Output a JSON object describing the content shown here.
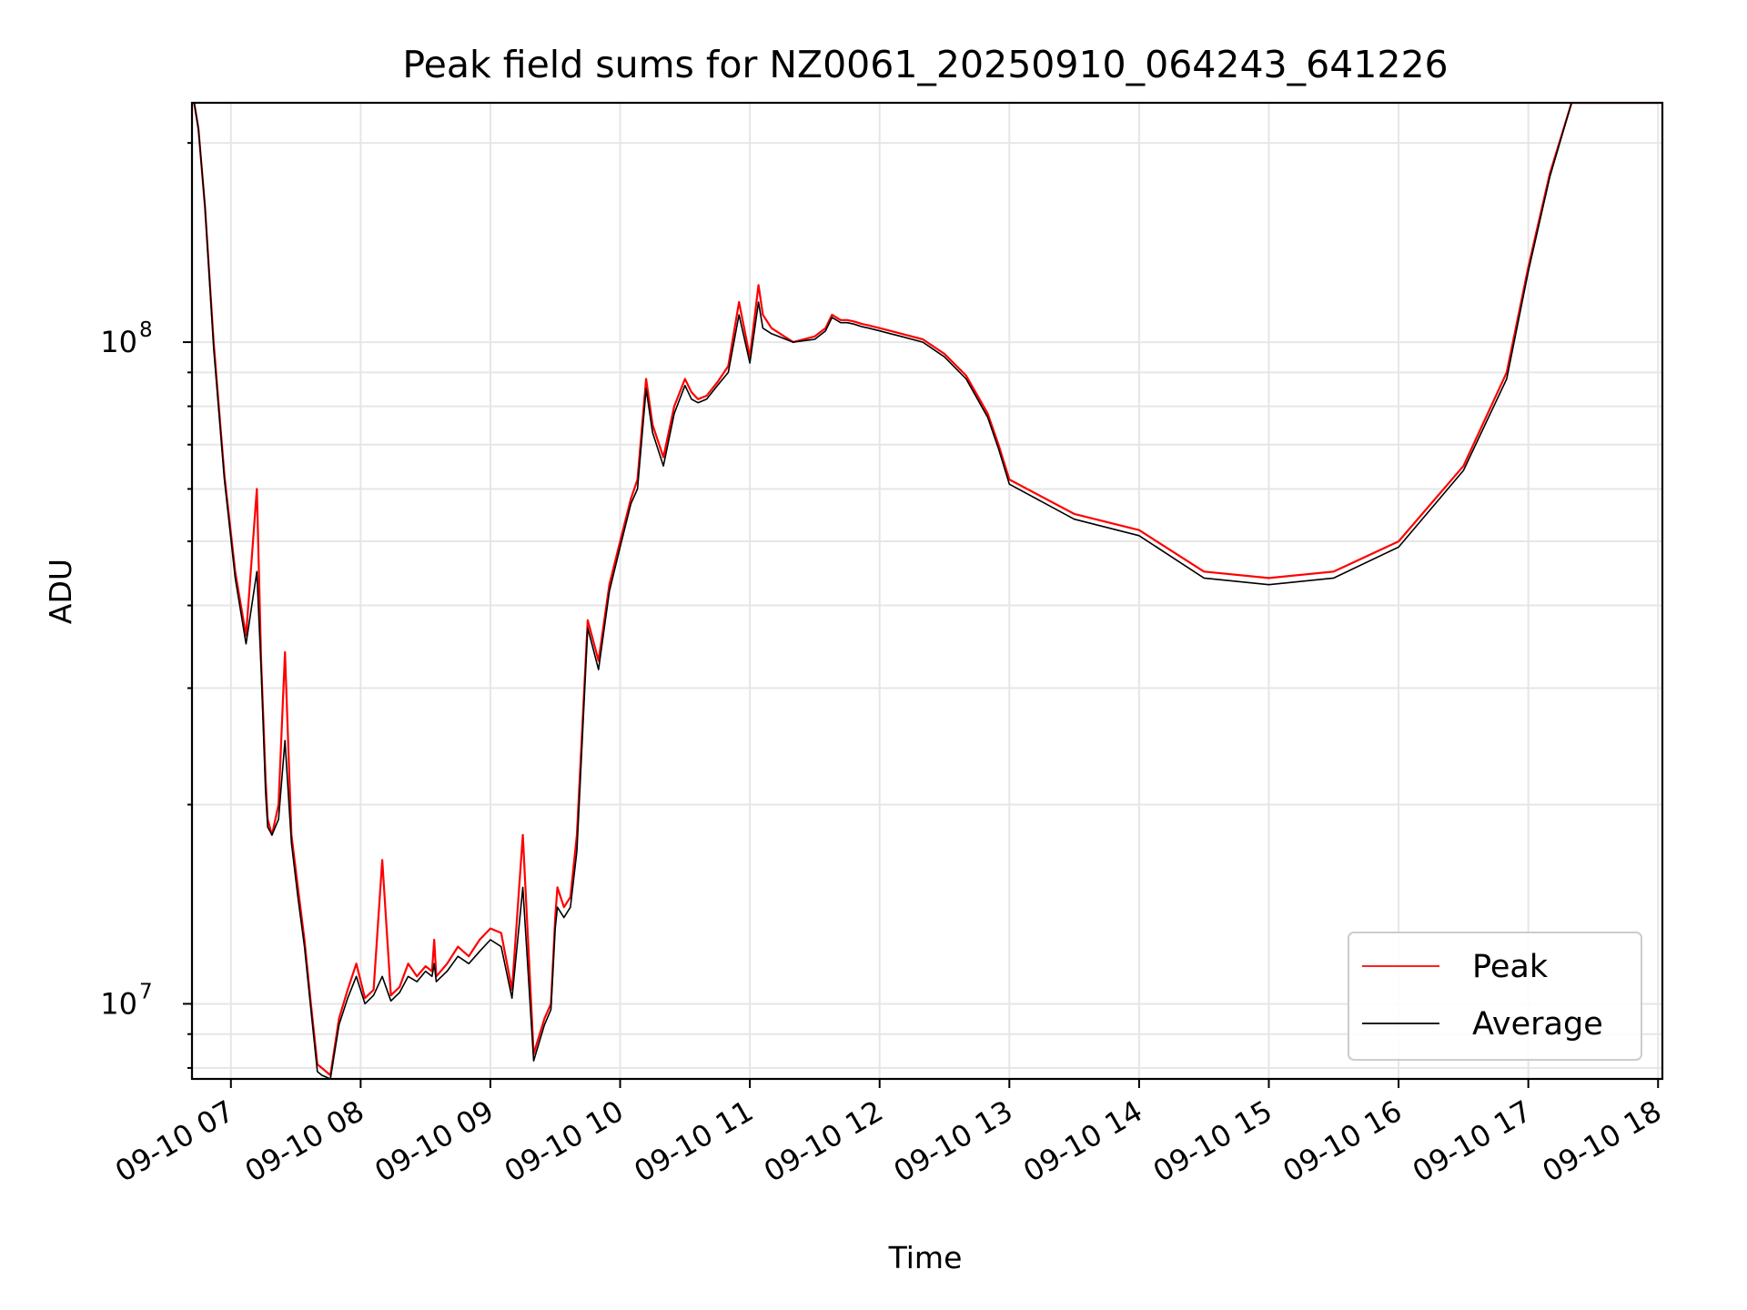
{
  "chart_data": {
    "type": "line",
    "title": "Peak field sums for NZ0061_20250910_064243_641226",
    "xlabel": "Time",
    "ylabel": "ADU",
    "x_scale": "time",
    "y_scale": "log",
    "xlim": [
      "2025-09-10 06:42",
      "2025-09-10 18:02"
    ],
    "ylim": [
      7700000,
      230000000
    ],
    "grid": true,
    "legend_position": "lower right",
    "x_ticks": [
      "09-10 07",
      "09-10 08",
      "09-10 09",
      "09-10 10",
      "09-10 11",
      "09-10 12",
      "09-10 13",
      "09-10 14",
      "09-10 15",
      "09-10 16",
      "09-10 17",
      "09-10 18"
    ],
    "y_ticks": [
      {
        "label_base": "10",
        "label_exp": "7",
        "value": 10000000
      },
      {
        "label_base": "10",
        "label_exp": "8",
        "value": 100000000
      }
    ],
    "series": [
      {
        "name": "Peak",
        "color": "#ff0000",
        "x": [
          "06:43",
          "06:45",
          "06:48",
          "06:52",
          "06:57",
          "07:02",
          "07:07",
          "07:12",
          "07:14",
          "07:15",
          "07:16",
          "07:17",
          "07:19",
          "07:22",
          "07:25",
          "07:28",
          "07:31",
          "07:34",
          "07:37",
          "07:40",
          "07:42",
          "07:46",
          "07:50",
          "07:54",
          "07:58",
          "08:02",
          "08:06",
          "08:10",
          "08:14",
          "08:18",
          "08:22",
          "08:26",
          "08:30",
          "08:33",
          "08:34",
          "08:35",
          "08:40",
          "08:45",
          "08:50",
          "08:55",
          "09:00",
          "09:05",
          "09:10",
          "09:15",
          "09:20",
          "09:25",
          "09:28",
          "09:30",
          "09:31",
          "09:34",
          "09:37",
          "09:40",
          "09:45",
          "09:50",
          "09:55",
          "10:00",
          "10:05",
          "10:08",
          "10:12",
          "10:15",
          "10:20",
          "10:25",
          "10:30",
          "10:33",
          "10:36",
          "10:40",
          "10:45",
          "10:50",
          "10:55",
          "11:00",
          "11:04",
          "11:06",
          "11:10",
          "11:20",
          "11:30",
          "11:35",
          "11:38",
          "11:40",
          "11:42",
          "11:45",
          "11:48",
          "11:50",
          "11:52",
          "11:55",
          "12:00",
          "12:05",
          "12:10",
          "12:20",
          "12:30",
          "12:40",
          "12:50",
          "12:55",
          "13:00",
          "13:30",
          "14:00",
          "14:30",
          "15:00",
          "15:30",
          "16:00",
          "16:30",
          "16:50",
          "17:00",
          "17:10",
          "17:20",
          "17:25",
          "17:30",
          "17:35",
          "17:40",
          "17:45",
          "17:50",
          "17:55",
          "18:00"
        ],
        "values": [
          230000000,
          210000000,
          160000000,
          100000000,
          63000000,
          45000000,
          36000000,
          60000000,
          33000000,
          27000000,
          22000000,
          19000000,
          18000000,
          20000000,
          34000000,
          18000000,
          15000000,
          12500000,
          10000000,
          8100000,
          8000000,
          7800000,
          9500000,
          10500000,
          11500000,
          10200000,
          10500000,
          16500000,
          10300000,
          10600000,
          11500000,
          11000000,
          11400000,
          11200000,
          12500000,
          11000000,
          11500000,
          12200000,
          11800000,
          12500000,
          13000000,
          12800000,
          10500000,
          18000000,
          8400000,
          9500000,
          10000000,
          13500000,
          15000000,
          14000000,
          14500000,
          18000000,
          38000000,
          33000000,
          43000000,
          50000000,
          58000000,
          62000000,
          88000000,
          75000000,
          67000000,
          80000000,
          88000000,
          84000000,
          82000000,
          83000000,
          87000000,
          92000000,
          115000000,
          95000000,
          122000000,
          110000000,
          105000000,
          100000000,
          102000000,
          105000000,
          110000000,
          109000000,
          108000000,
          108000000,
          107500000,
          107000000,
          106500000,
          106000000,
          105000000,
          104000000,
          103000000,
          101000000,
          96000000,
          89000000,
          78000000,
          70000000,
          62000000,
          55000000,
          52000000,
          45000000,
          44000000,
          45000000,
          50000000,
          65000000,
          90000000,
          130000000,
          180000000,
          230000000,
          230000000,
          230000000,
          230000000,
          230000000,
          230000000,
          230000000,
          230000000,
          230000000
        ]
      },
      {
        "name": "Average",
        "color": "#000000",
        "x": [
          "06:43",
          "06:45",
          "06:48",
          "06:52",
          "06:57",
          "07:02",
          "07:07",
          "07:12",
          "07:14",
          "07:15",
          "07:16",
          "07:17",
          "07:19",
          "07:22",
          "07:25",
          "07:28",
          "07:31",
          "07:34",
          "07:37",
          "07:40",
          "07:42",
          "07:46",
          "07:50",
          "07:54",
          "07:58",
          "08:02",
          "08:06",
          "08:10",
          "08:14",
          "08:18",
          "08:22",
          "08:26",
          "08:30",
          "08:33",
          "08:34",
          "08:35",
          "08:40",
          "08:45",
          "08:50",
          "08:55",
          "09:00",
          "09:05",
          "09:10",
          "09:15",
          "09:20",
          "09:25",
          "09:28",
          "09:30",
          "09:31",
          "09:34",
          "09:37",
          "09:40",
          "09:45",
          "09:50",
          "09:55",
          "10:00",
          "10:05",
          "10:08",
          "10:12",
          "10:15",
          "10:20",
          "10:25",
          "10:30",
          "10:33",
          "10:36",
          "10:40",
          "10:45",
          "10:50",
          "10:55",
          "11:00",
          "11:04",
          "11:06",
          "11:10",
          "11:20",
          "11:30",
          "11:35",
          "11:38",
          "11:40",
          "11:42",
          "11:45",
          "11:48",
          "11:50",
          "11:52",
          "11:55",
          "12:00",
          "12:05",
          "12:10",
          "12:20",
          "12:30",
          "12:40",
          "12:50",
          "12:55",
          "13:00",
          "13:30",
          "14:00",
          "14:30",
          "15:00",
          "15:30",
          "16:00",
          "16:30",
          "16:50",
          "17:00",
          "17:10",
          "17:20",
          "17:25",
          "17:30",
          "17:35",
          "17:40",
          "17:45",
          "17:50",
          "17:55",
          "18:00"
        ],
        "values": [
          230000000,
          210000000,
          160000000,
          98000000,
          62000000,
          44000000,
          35000000,
          45000000,
          32000000,
          26000000,
          21000000,
          18500000,
          18000000,
          19000000,
          25000000,
          17500000,
          14500000,
          12200000,
          9800000,
          7900000,
          7800000,
          7700000,
          9300000,
          10200000,
          11000000,
          10000000,
          10300000,
          11000000,
          10100000,
          10400000,
          11000000,
          10800000,
          11200000,
          11000000,
          11500000,
          10800000,
          11200000,
          11800000,
          11500000,
          12000000,
          12500000,
          12200000,
          10200000,
          15000000,
          8200000,
          9300000,
          9800000,
          13000000,
          14000000,
          13500000,
          14000000,
          17000000,
          37000000,
          32000000,
          42000000,
          49000000,
          57000000,
          60000000,
          85000000,
          73000000,
          65000000,
          78000000,
          86000000,
          82000000,
          81000000,
          82000000,
          86000000,
          90000000,
          110000000,
          93000000,
          115000000,
          105000000,
          103000000,
          100000000,
          101000000,
          104000000,
          109000000,
          108000000,
          107000000,
          107000000,
          106500000,
          106000000,
          105500000,
          105000000,
          104000000,
          103000000,
          102000000,
          100000000,
          95000000,
          88000000,
          77000000,
          69000000,
          61000000,
          54000000,
          51000000,
          44000000,
          43000000,
          44000000,
          49000000,
          64000000,
          88000000,
          128000000,
          178000000,
          230000000,
          230000000,
          230000000,
          230000000,
          230000000,
          230000000,
          230000000,
          230000000,
          230000000
        ]
      }
    ]
  }
}
